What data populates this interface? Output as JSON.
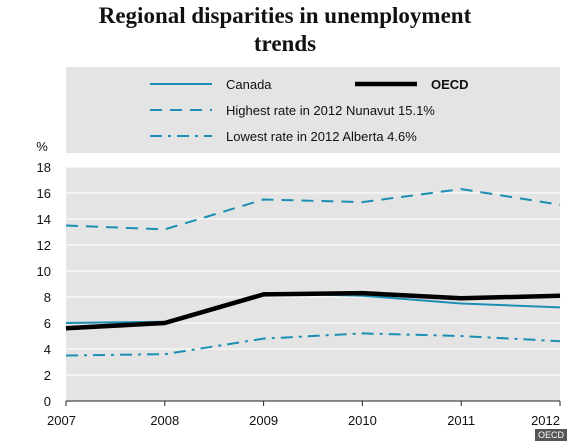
{
  "title_lines": [
    "Regional disparities in unemployment",
    "trends"
  ],
  "credit": "OECD",
  "colors": {
    "canada": "#1b8fb3",
    "oecd": "#000000",
    "highest": "#1b8fb3",
    "lowest": "#1b8fb3",
    "plot_bg": "#e4e4e4",
    "legend_bg": "#e4e4e4",
    "grid": "#ffffff"
  },
  "chart_data": {
    "type": "line",
    "title": "Regional disparities in unemployment trends",
    "ylabel": "%",
    "xlabel": "",
    "x": [
      2007,
      2008,
      2009,
      2010,
      2011,
      2012
    ],
    "ylim": [
      0,
      18
    ],
    "yticks": [
      0,
      2,
      4,
      6,
      8,
      10,
      12,
      14,
      16,
      18
    ],
    "grid": true,
    "legend_position": "top",
    "series": [
      {
        "name": "Canada",
        "style": "solid",
        "values": [
          6.0,
          6.1,
          8.3,
          8.1,
          7.5,
          7.2
        ]
      },
      {
        "name": "OECD",
        "style": "bold-solid",
        "values": [
          5.6,
          6.0,
          8.2,
          8.3,
          7.9,
          8.1
        ]
      },
      {
        "name": "Highest rate in 2012 Nunavut 15.1%",
        "style": "dashed",
        "values": [
          13.5,
          13.2,
          15.5,
          15.3,
          16.3,
          15.1
        ]
      },
      {
        "name": "Lowest rate in 2012 Alberta 4.6%",
        "style": "dash-dot",
        "values": [
          3.5,
          3.6,
          4.8,
          5.2,
          5.0,
          4.6
        ]
      }
    ]
  }
}
